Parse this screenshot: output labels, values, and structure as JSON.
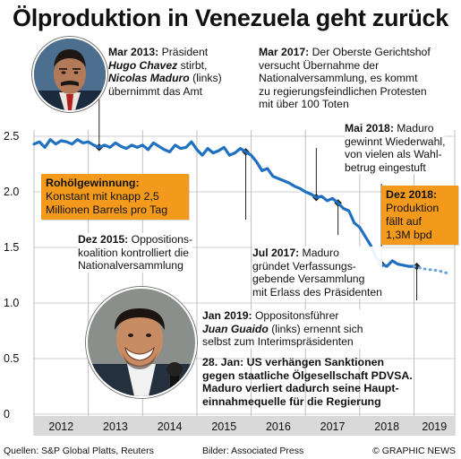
{
  "title": "Ölproduktion in Venezuela geht zurück",
  "chart_data": {
    "type": "line",
    "title": "Ölproduktion in Venezuela geht zurück",
    "xlabel": "",
    "ylabel": "",
    "x_ticks": [
      "2012",
      "2013",
      "2014",
      "2015",
      "2016",
      "2017",
      "2018",
      "2019"
    ],
    "y_ticks": [
      "2.5",
      "2.0",
      "1.5",
      "1.0",
      "0.5",
      "0"
    ],
    "xlim": [
      2012.0,
      2019.75
    ],
    "ylim": [
      0,
      2.5
    ],
    "grid": true,
    "series": [
      {
        "color": "#1f70c1",
        "x": [
          2012.0,
          2012.1,
          2012.2,
          2012.3,
          2012.4,
          2012.5,
          2012.6,
          2012.7,
          2012.8,
          2012.9,
          2013.0,
          2013.1,
          2013.2,
          2013.3,
          2013.4,
          2013.5,
          2013.6,
          2013.7,
          2013.8,
          2013.9,
          2014.0,
          2014.1,
          2014.2,
          2014.3,
          2014.4,
          2014.5,
          2014.6,
          2014.7,
          2014.8,
          2014.9,
          2015.0,
          2015.1,
          2015.2,
          2015.3,
          2015.4,
          2015.5,
          2015.6,
          2015.7,
          2015.8,
          2015.9,
          2016.0,
          2016.1,
          2016.2,
          2016.3,
          2016.4,
          2016.5,
          2016.6,
          2016.7,
          2016.8,
          2016.9,
          2017.0,
          2017.1,
          2017.2,
          2017.3,
          2017.4,
          2017.5,
          2017.6,
          2017.7,
          2017.8,
          2017.9,
          2018.0,
          2018.1,
          2018.2,
          2018.3,
          2018.4,
          2018.5,
          2018.6,
          2018.7,
          2018.8,
          2018.9,
          2019.0
        ],
        "values": [
          2.43,
          2.45,
          2.4,
          2.47,
          2.43,
          2.46,
          2.45,
          2.43,
          2.47,
          2.44,
          2.45,
          2.42,
          2.4,
          2.42,
          2.4,
          2.44,
          2.41,
          2.39,
          2.42,
          2.4,
          2.42,
          2.38,
          2.44,
          2.41,
          2.38,
          2.36,
          2.42,
          2.39,
          2.4,
          2.45,
          2.38,
          2.33,
          2.39,
          2.35,
          2.37,
          2.4,
          2.33,
          2.35,
          2.39,
          2.36,
          2.33,
          2.27,
          2.19,
          2.21,
          2.14,
          2.12,
          2.1,
          2.08,
          2.05,
          2.03,
          2.0,
          1.98,
          1.95,
          1.96,
          1.92,
          1.94,
          1.9,
          1.85,
          1.83,
          1.72,
          1.68,
          1.6,
          1.52,
          1.41,
          1.35,
          1.33,
          1.38,
          1.35,
          1.34,
          1.33,
          1.33
        ]
      },
      {
        "style": "dotted",
        "color": "#6fa3d8",
        "x": [
          2019.0,
          2019.15,
          2019.3,
          2019.45,
          2019.6
        ],
        "values": [
          1.33,
          1.31,
          1.3,
          1.29,
          1.27
        ]
      }
    ]
  },
  "annotations": {
    "a2013": {
      "l1_b": "Mar 2013:",
      "l1_t": " Präsident",
      "l2_i": "Hugo Chavez",
      "l2_t": " stirbt,",
      "l3_i": "Nicolas Maduro",
      "l3_t": " (links)",
      "l4": "übernimmt das Amt"
    },
    "a2017mar": {
      "l1_b": "Mar 2017:",
      "l1_t": " Der Oberste Gerichtshof",
      "l2": "versucht Übernahme der",
      "l3": "Nationalversammlung, es kommt",
      "l4": "zu regierungsfeindlichen Protesten",
      "l5": "mit über  100 Toten"
    },
    "a2018mai": {
      "l1_b": "Mai 2018:",
      "l1_t": " Maduro",
      "l2": "gewinnt Wiederwahl,",
      "l3": "von vielen als Wahl-",
      "l4": "betrug eingestuft"
    },
    "a2015": {
      "l1_b": "Dez 2015:",
      "l1_t": " Oppositions-",
      "l2": "koalition kontrolliert die",
      "l3": "Nationalversammlung"
    },
    "a2017jul": {
      "l1_b": "Jul 2017:",
      "l1_t": " Maduro",
      "l2": "gründet Verfassungs-",
      "l3": "gebende Versammlung",
      "l4": "mit Erlass des Präsidenten"
    },
    "a2019": {
      "l1_b": "Jan 2019:",
      "l1_t": " Oppositonsführer",
      "l2_i": "Juan Guaido",
      "l2_t": " (links)",
      "l2_t2": " ernennt sich",
      "l3": "selbst zum Interimspräsidenten"
    },
    "a28jan": {
      "l1": "28. Jan: US verhängen Sanktionen",
      "l2": "gegen staatliche Ölgesellschaft PDVSA.",
      "l3": "Maduro verliert dadurch seine Haupt-",
      "l4": "einnahmequelle für die Regierung"
    }
  },
  "boxes": {
    "stable": {
      "head": "Rohölgewinnung:",
      "l1": "Konstant mit knapp 2,5",
      "l2": "Millionen Barrels pro Tag"
    },
    "dec2018": {
      "head": "Dez 2018:",
      "l1": "Produktion",
      "l2": "fällt auf",
      "l3": "1,3M bpd"
    }
  },
  "footer": {
    "sources": "Quellen: S&P Global Platts, Reuters",
    "images": "Bilder: Associated Press",
    "credit": "© GRAPHIC NEWS"
  },
  "colors": {
    "line": "#1f70c1",
    "box": "#f39a1c",
    "axis_bar": "#d9d9d9"
  }
}
